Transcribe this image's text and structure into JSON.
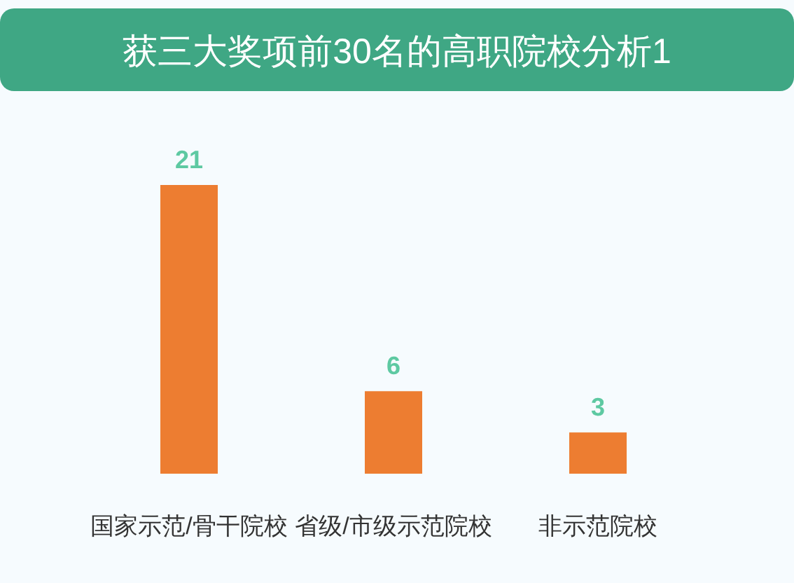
{
  "chart_data": {
    "type": "bar",
    "title": "获三大奖项前30名的高职院校分析1",
    "categories": [
      "国家示范/骨干院校",
      "省级/市级示范院校",
      "非示范院校"
    ],
    "values": [
      21,
      6,
      3
    ],
    "color": "#ed7d31",
    "data_labels": true
  }
}
